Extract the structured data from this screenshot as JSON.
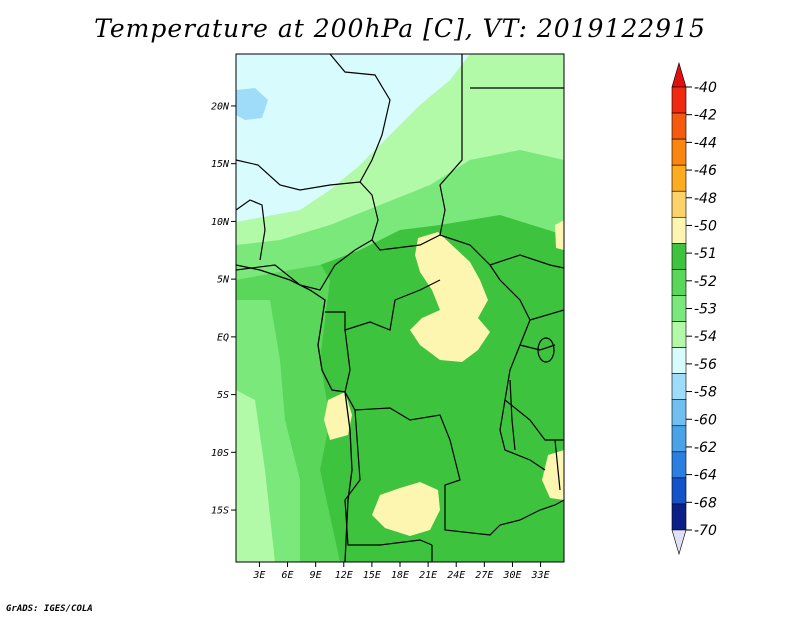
{
  "title": "Temperature at 200hPa [C], VT: 2019122915",
  "credit": "GrADS: IGES/COLA",
  "map": {
    "lat_labels": [
      "20N",
      "15N",
      "10N",
      "5N",
      "EQ",
      "5S",
      "10S",
      "15S"
    ],
    "lat_values": [
      20,
      15,
      10,
      5,
      0,
      -5,
      -10,
      -15
    ],
    "lon_labels": [
      "3E",
      "6E",
      "9E",
      "12E",
      "15E",
      "18E",
      "21E",
      "24E",
      "27E",
      "30E",
      "33E"
    ],
    "lon_values": [
      3,
      6,
      9,
      12,
      15,
      18,
      21,
      24,
      27,
      30,
      33
    ],
    "lon_range": [
      0.5,
      35.5
    ],
    "lat_range": [
      -19.5,
      24.5
    ]
  },
  "colorbar": {
    "labels": [
      "-40",
      "-42",
      "-44",
      "-46",
      "-48",
      "-50",
      "-51",
      "-52",
      "-53",
      "-54",
      "-56",
      "-58",
      "-60",
      "-62",
      "-64",
      "-68",
      "-70"
    ],
    "colors": [
      "#f02a10",
      "#f55b10",
      "#fa8510",
      "#fcac1e",
      "#fcd26b",
      "#fcf6b0",
      "#3ec33e",
      "#5ad65a",
      "#7ae87a",
      "#b2f9a8",
      "#d8fcfe",
      "#9fdcfa",
      "#71bff0",
      "#4aa2e8",
      "#2a7fe0",
      "#1452c8",
      "#0a2088"
    ],
    "top_triangle_color": "#e01010",
    "bottom_triangle_color": "#e0e0f8"
  },
  "shading_colors": {
    "cold_54_56": "#d8fcfe",
    "band_53_54": "#b2f9a8",
    "band_52_53": "#7ae87a",
    "band_51_52": "#5ad65a",
    "band_main": "#3ec33e",
    "warm_50_51": "#fcf6b0",
    "cold_56_58": "#9fdcfa"
  }
}
